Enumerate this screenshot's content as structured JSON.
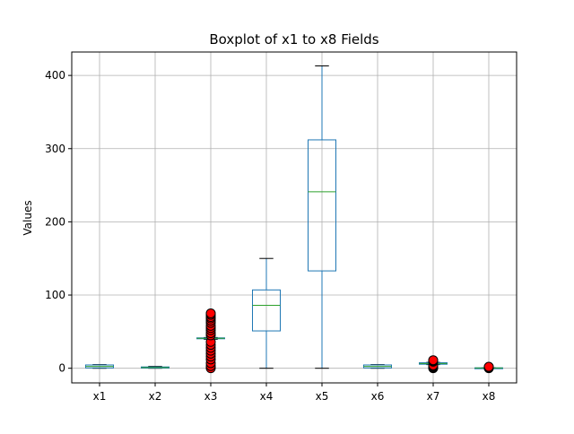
{
  "chart_data": {
    "type": "box",
    "title": "Boxplot of x1 to x8 Fields",
    "xlabel": "",
    "ylabel": "Values",
    "ylim": [
      -20,
      432
    ],
    "yticks": [
      0,
      100,
      200,
      300,
      400
    ],
    "grid": true,
    "categories": [
      "x1",
      "x2",
      "x3",
      "x4",
      "x5",
      "x6",
      "x7",
      "x8"
    ],
    "boxes": [
      {
        "name": "x1",
        "whislo": 0,
        "q1": 0.5,
        "med": 2.5,
        "q3": 4.5,
        "whishi": 5,
        "fliers": []
      },
      {
        "name": "x2",
        "whislo": 0,
        "q1": 0.3,
        "med": 1.0,
        "q3": 1.8,
        "whishi": 2.5,
        "fliers": []
      },
      {
        "name": "x3",
        "whislo": 39.5,
        "q1": 40.5,
        "med": 41,
        "q3": 41.5,
        "whishi": 42,
        "fliers": [
          0,
          3,
          7,
          12,
          16,
          20,
          24,
          28,
          32,
          36,
          45,
          48,
          52,
          55,
          58,
          62,
          65,
          68,
          70,
          73,
          75
        ]
      },
      {
        "name": "x4",
        "whislo": 0,
        "q1": 51,
        "med": 86,
        "q3": 107,
        "whishi": 150,
        "fliers": []
      },
      {
        "name": "x5",
        "whislo": 0,
        "q1": 133,
        "med": 241,
        "q3": 312,
        "whishi": 413,
        "fliers": []
      },
      {
        "name": "x6",
        "whislo": 0,
        "q1": 0.5,
        "med": 2.5,
        "q3": 4.5,
        "whishi": 5,
        "fliers": []
      },
      {
        "name": "x7",
        "whislo": 5,
        "q1": 5.5,
        "med": 6.5,
        "q3": 7.5,
        "whishi": 8,
        "fliers": [
          0,
          1,
          2,
          3,
          4,
          9,
          10,
          11
        ]
      },
      {
        "name": "x8",
        "whislo": 0,
        "q1": 0.1,
        "med": 0.3,
        "q3": 0.6,
        "whishi": 0.8,
        "fliers": [
          0,
          0.5,
          1,
          1.5,
          2
        ]
      }
    ],
    "colors": {
      "box": "#1f77b4",
      "median": "#2ca02c",
      "cap": "#000000",
      "flier_fill": "#ff0000",
      "flier_edge": "#000000",
      "grid": "#b0b0b0"
    }
  }
}
